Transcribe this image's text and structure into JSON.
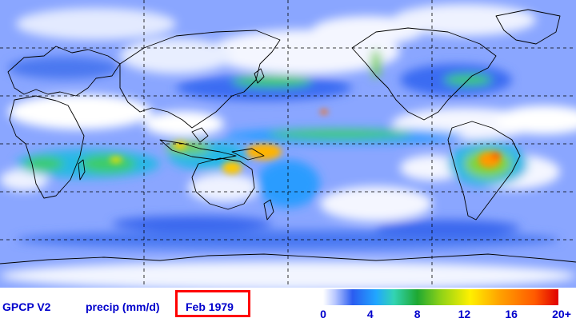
{
  "map": {
    "projection": "equirectangular",
    "grid_lines": "dashed",
    "coastlines": true,
    "field": "global precipitation"
  },
  "legend": {
    "dataset": "GPCP V2",
    "variable": "precip (mm/d)",
    "date": "Feb 1979",
    "date_box_color": "#ff0000",
    "text_color": "#0000cc",
    "colorbar": {
      "min": 0,
      "max": 20,
      "tick_labels": [
        "0",
        "4",
        "8",
        "12",
        "16",
        "20+"
      ],
      "tick_values": [
        0,
        4,
        8,
        12,
        16,
        20
      ],
      "stops": [
        {
          "value": 0,
          "color": "#ffffff"
        },
        {
          "value": 1,
          "color": "#b9c8ff"
        },
        {
          "value": 2.5,
          "color": "#2a5cf0"
        },
        {
          "value": 4.5,
          "color": "#21a6ff"
        },
        {
          "value": 6,
          "color": "#33d4b4"
        },
        {
          "value": 8,
          "color": "#1ea832"
        },
        {
          "value": 10,
          "color": "#8fd217"
        },
        {
          "value": 12.5,
          "color": "#fff000"
        },
        {
          "value": 15,
          "color": "#ffa200"
        },
        {
          "value": 18,
          "color": "#ff5a00"
        },
        {
          "value": 20,
          "color": "#e00000"
        }
      ]
    }
  }
}
